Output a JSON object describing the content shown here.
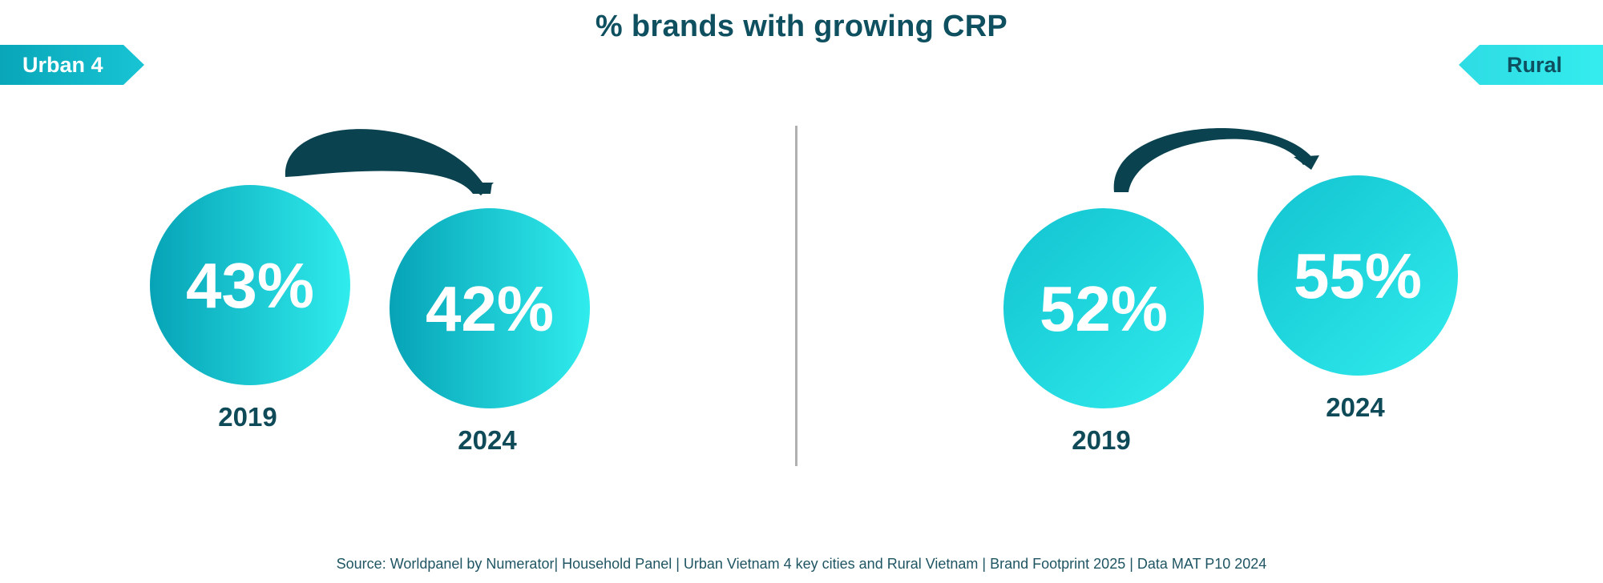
{
  "title": "% brands with growing CRP",
  "source": "Source: Worldpanel by Numerator| Household Panel | Urban Vietnam 4 key cities and Rural Vietnam | Brand Footprint 2025 | Data MAT P10 2024",
  "colors": {
    "title_text": "#0f5060",
    "circle_dark": "#06a3b6",
    "circle_light": "#30eced",
    "arrow": "#0b4250",
    "divider": "#b0b0b0"
  },
  "chart_data": [
    {
      "type": "bubble",
      "segment": "Urban 4",
      "unit": "%",
      "categories": [
        "2019",
        "2024"
      ],
      "values": [
        43,
        42
      ]
    },
    {
      "type": "bubble",
      "segment": "Rural",
      "unit": "%",
      "categories": [
        "2019",
        "2024"
      ],
      "values": [
        52,
        55
      ]
    }
  ]
}
